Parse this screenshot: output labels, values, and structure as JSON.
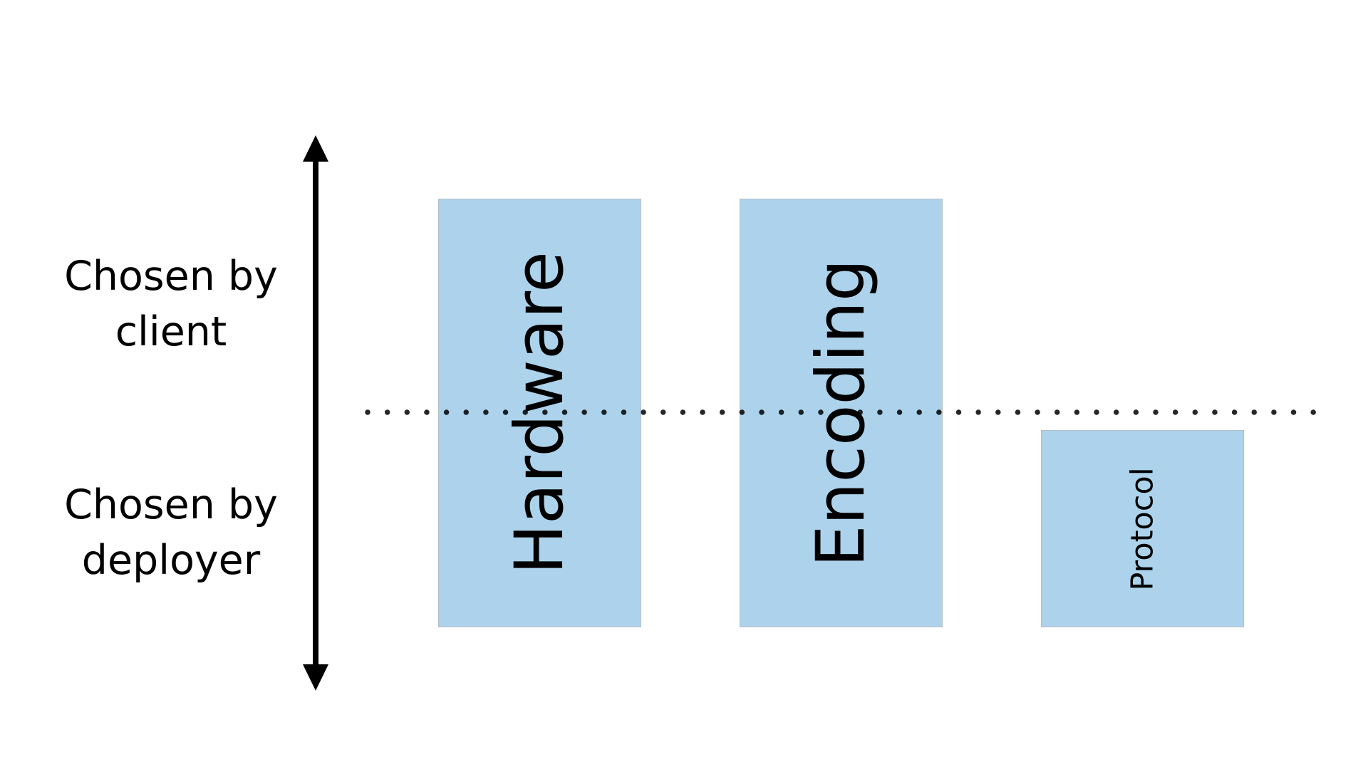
{
  "axis": {
    "top_label": "Chosen by client",
    "bottom_label": "Chosen by deployer"
  },
  "boxes": [
    {
      "label": "Hardware"
    },
    {
      "label": "Encoding"
    },
    {
      "label": "Protocol"
    }
  ],
  "colors": {
    "box_fill": "#acd3eb",
    "box_border": "#b5bec6",
    "arrow": "#000000",
    "divider": "#000000"
  }
}
